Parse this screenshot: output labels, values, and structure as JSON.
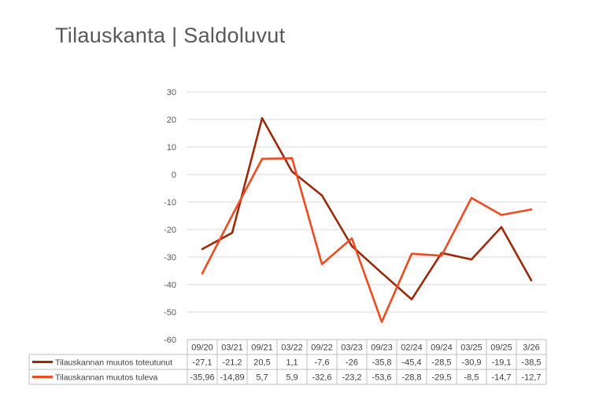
{
  "page": {
    "title": "Tilauskanta | Saldoluvut"
  },
  "chart_data": {
    "type": "line",
    "title": "Tilauskanta | Saldoluvut",
    "categories": [
      "09/20",
      "03/21",
      "09/21",
      "03/22",
      "09/22",
      "03/23",
      "09/23",
      "02/24",
      "09/24",
      "03/25",
      "09/25",
      "3/26"
    ],
    "ylim": [
      -60,
      30
    ],
    "yticks": [
      30,
      20,
      10,
      0,
      -10,
      -20,
      -30,
      -40,
      -50,
      -60
    ],
    "grid": true,
    "legend": "data-table",
    "series": [
      {
        "name": "Tilauskannan muutos toteutunut",
        "color": "#9C2A0A",
        "values": [
          -27.1,
          -21.2,
          20.5,
          1.1,
          -7.6,
          -26,
          -35.8,
          -45.4,
          -28.5,
          -30.9,
          -19.1,
          -38.5
        ],
        "labels": [
          "-27,1",
          "-21,2",
          "20,5",
          "1,1",
          "-7,6",
          "-26",
          "-35,8",
          "-45,4",
          "-28,5",
          "-30,9",
          "-19,1",
          "-38,5"
        ]
      },
      {
        "name": "Tilauskannan muutos tuleva",
        "color": "#EE4B1F",
        "values": [
          -35.96,
          -14.89,
          5.7,
          5.9,
          -32.6,
          -23.2,
          -53.6,
          -28.8,
          -29.5,
          -8.5,
          -14.7,
          -12.7
        ],
        "labels": [
          "-35,96",
          "-14,89",
          "5,7",
          "5,9",
          "-32,6",
          "-23,2",
          "-53,6",
          "-28,8",
          "-29,5",
          "-8,5",
          "-14,7",
          "-12,7"
        ]
      }
    ]
  }
}
